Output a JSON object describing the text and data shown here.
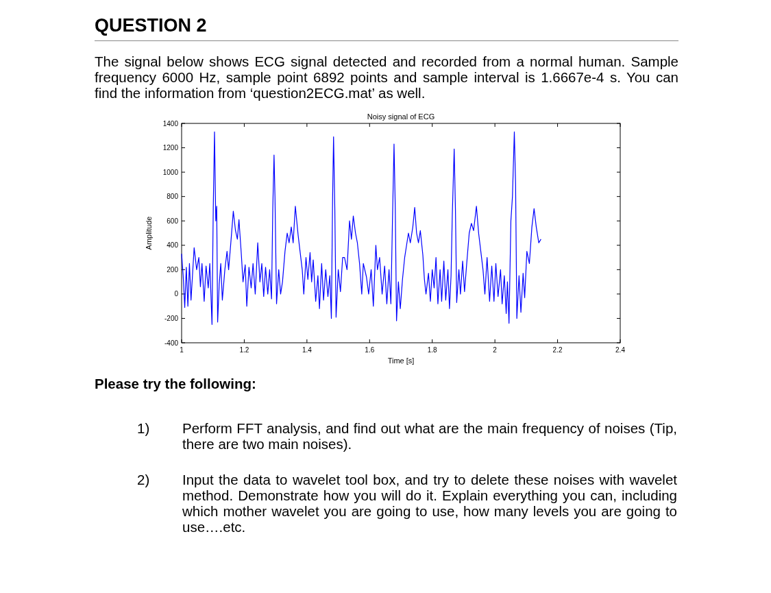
{
  "chart_data": {
    "type": "line",
    "title": "Noisy signal of ECG",
    "xlabel": "Time [s]",
    "ylabel": "Amplitude",
    "xlim": [
      1,
      2.4
    ],
    "xticks": [
      1,
      1.2,
      1.4,
      1.6,
      1.8,
      2,
      2.2,
      2.4
    ],
    "ylim": [
      -400,
      1400
    ],
    "yticks": [
      -400,
      -200,
      0,
      200,
      400,
      600,
      800,
      1000,
      1200,
      1400
    ],
    "grid": false,
    "marker": "none",
    "line_style": "solid",
    "annotations": [
      "QUESTION 2",
      "The signal below shows ECG signal detected and recorded from a normal human. Sample frequency 6000 Hz, sample point 6892 points and sample interval is 1.6667e-4 s. You can find the information from ‘question2ECG.mat’ as well.",
      "Please try the following:",
      "1)",
      "Perform FFT analysis, and find out what are the main frequency of noises (Tip, there are two main noises).",
      "2)",
      "Input the data to wavelet tool box, and try to delete these noises with wavelet method. Demonstrate how you will do it. Explain everything you can, including which mother wavelet you are going to use, how many levels you are going to use….etc."
    ],
    "series": [
      {
        "color": "#0000ff",
        "x": [
          1.0,
          1.005,
          1.01,
          1.015,
          1.02,
          1.025,
          1.03,
          1.04,
          1.048,
          1.055,
          1.06,
          1.065,
          1.072,
          1.078,
          1.085,
          1.09,
          1.097,
          1.101,
          1.105,
          1.109,
          1.112,
          1.115,
          1.12,
          1.125,
          1.13,
          1.138,
          1.145,
          1.15,
          1.158,
          1.165,
          1.172,
          1.178,
          1.183,
          1.19,
          1.196,
          1.203,
          1.208,
          1.215,
          1.222,
          1.228,
          1.235,
          1.243,
          1.25,
          1.256,
          1.262,
          1.268,
          1.275,
          1.281,
          1.287,
          1.291,
          1.295,
          1.298,
          1.303,
          1.31,
          1.316,
          1.322,
          1.33,
          1.337,
          1.343,
          1.35,
          1.356,
          1.363,
          1.372,
          1.378,
          1.385,
          1.39,
          1.397,
          1.403,
          1.41,
          1.415,
          1.42,
          1.428,
          1.435,
          1.44,
          1.447,
          1.453,
          1.46,
          1.467,
          1.473,
          1.478,
          1.482,
          1.485,
          1.489,
          1.493,
          1.5,
          1.507,
          1.514,
          1.52,
          1.528,
          1.536,
          1.542,
          1.548,
          1.555,
          1.561,
          1.568,
          1.575,
          1.58,
          1.59,
          1.597,
          1.605,
          1.612,
          1.62,
          1.625,
          1.632,
          1.64,
          1.648,
          1.655,
          1.662,
          1.668,
          1.673,
          1.678,
          1.682,
          1.686,
          1.692,
          1.698,
          1.705,
          1.712,
          1.718,
          1.724,
          1.73,
          1.738,
          1.744,
          1.75,
          1.756,
          1.762,
          1.77,
          1.775,
          1.78,
          1.788,
          1.794,
          1.8,
          1.806,
          1.812,
          1.818,
          1.825,
          1.83,
          1.837,
          1.843,
          1.85,
          1.855,
          1.86,
          1.864,
          1.87,
          1.874,
          1.878,
          1.885,
          1.89,
          1.897,
          1.903,
          1.91,
          1.918,
          1.925,
          1.932,
          1.941,
          1.948,
          1.955,
          1.962,
          1.968,
          1.975,
          1.983,
          1.99,
          1.997,
          2.003,
          2.01,
          2.018,
          2.023,
          2.03,
          2.036,
          2.04,
          2.045,
          2.051,
          2.056,
          2.062,
          2.066,
          2.07,
          2.077,
          2.083,
          2.09,
          2.095,
          2.102,
          2.11,
          2.118,
          2.125,
          2.132,
          2.14,
          2.147
        ],
        "values": [
          330,
          150,
          -110,
          220,
          -100,
          250,
          -50,
          380,
          200,
          300,
          60,
          250,
          -60,
          230,
          50,
          250,
          -250,
          700,
          1330,
          600,
          720,
          -230,
          80,
          250,
          -50,
          200,
          350,
          200,
          450,
          680,
          520,
          450,
          610,
          350,
          100,
          240,
          -100,
          220,
          50,
          250,
          0,
          420,
          100,
          250,
          -20,
          220,
          0,
          200,
          -40,
          700,
          1140,
          800,
          -80,
          200,
          0,
          100,
          350,
          500,
          420,
          550,
          420,
          720,
          480,
          350,
          200,
          0,
          300,
          120,
          340,
          100,
          280,
          -60,
          150,
          -120,
          250,
          -50,
          200,
          -20,
          150,
          -200,
          800,
          1290,
          700,
          -190,
          200,
          20,
          300,
          300,
          200,
          600,
          450,
          640,
          500,
          420,
          250,
          0,
          250,
          140,
          0,
          200,
          -100,
          400,
          200,
          300,
          0,
          230,
          -80,
          200,
          -80,
          600,
          1230,
          700,
          -220,
          100,
          -120,
          120,
          300,
          400,
          500,
          420,
          550,
          710,
          500,
          420,
          520,
          320,
          120,
          0,
          170,
          -60,
          200,
          50,
          300,
          -80,
          200,
          -60,
          270,
          -50,
          200,
          -120,
          150,
          650,
          1190,
          700,
          -70,
          200,
          0,
          270,
          20,
          250,
          500,
          580,
          520,
          720,
          500,
          350,
          200,
          0,
          300,
          -60,
          230,
          -60,
          250,
          -20,
          200,
          -80,
          150,
          -160,
          100,
          -240,
          600,
          800,
          1330,
          900,
          -200,
          150,
          -150,
          170,
          -30,
          350,
          250,
          550,
          700,
          550,
          420,
          450
        ]
      }
    ]
  }
}
